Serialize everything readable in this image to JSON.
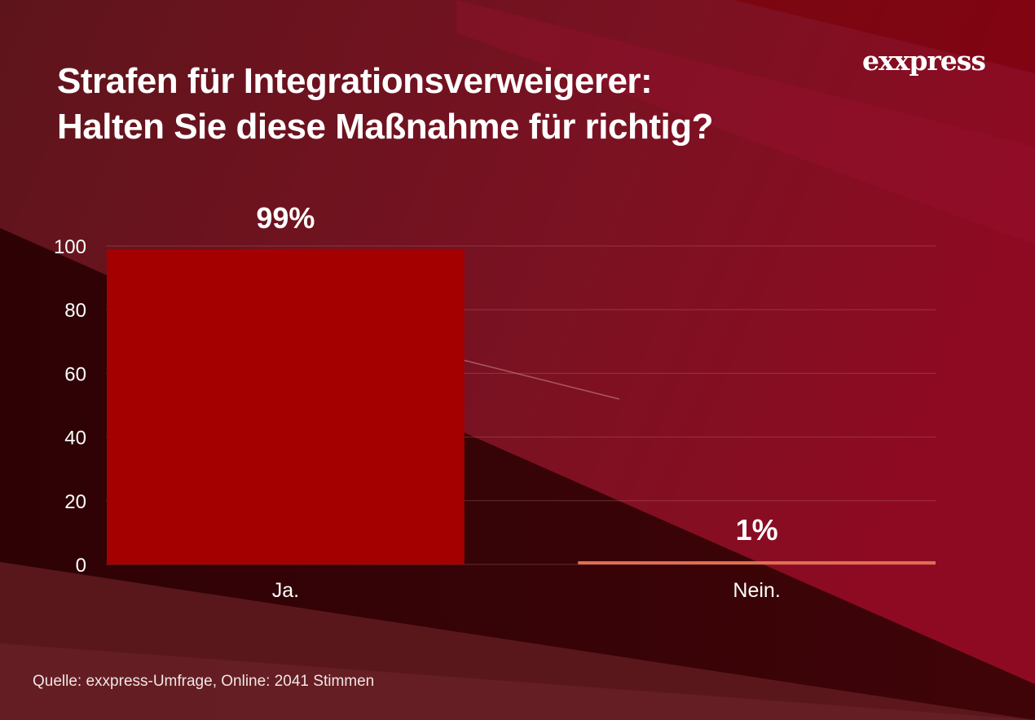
{
  "header": {
    "title_line1": "Strafen für Integrationsverweigerer:",
    "title_line2": "Halten Sie diese Maßnahme für richtig?",
    "logo": "exxpress"
  },
  "footer": {
    "source": "Quelle:  exxpress-Umfrage, Online: 2041 Stimmen"
  },
  "colors": {
    "background": "#3a0508",
    "accent_bar": "#a50000",
    "minor_bar": "#e07050"
  },
  "chart_data": {
    "type": "bar",
    "title": "Strafen für Integrationsverweigerer: Halten Sie diese Maßnahme für richtig?",
    "xlabel": "",
    "ylabel": "",
    "categories": [
      "Ja.",
      "Nein."
    ],
    "values": [
      99,
      1
    ],
    "data_labels": [
      "99%",
      "1%"
    ],
    "bar_colors": [
      "#a50000",
      "#e07050"
    ],
    "ylim": [
      0,
      100
    ],
    "yticks": [
      0,
      20,
      40,
      60,
      80,
      100
    ],
    "grid": true,
    "legend": "none"
  }
}
